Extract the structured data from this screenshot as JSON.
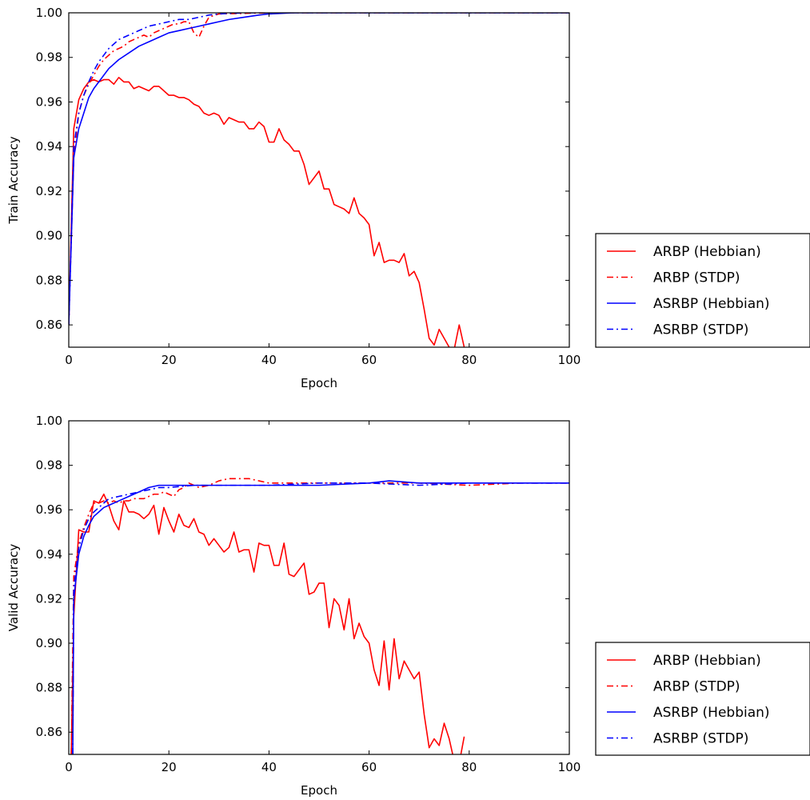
{
  "chart_data": [
    {
      "type": "line",
      "title": "",
      "xlabel": "Epoch",
      "ylabel": "Train Accuracy",
      "xlim": [
        0,
        100
      ],
      "ylim": [
        0.85,
        1.0
      ],
      "xticks": [
        "0",
        "20",
        "40",
        "60",
        "80",
        "100"
      ],
      "yticks": [
        "0.86",
        "0.88",
        "0.90",
        "0.92",
        "0.94",
        "0.96",
        "0.98",
        "1.00"
      ],
      "grid": false,
      "legend": {
        "placement": "outside-right",
        "entries": [
          "ARBP (Hebbian)",
          "ARBP (STDP)",
          "ASRBP (Hebbian)",
          "ASRBP (STDP)"
        ]
      },
      "series": [
        {
          "name": "ARBP (Hebbian)",
          "color": "#ff0000",
          "style": "solid",
          "x": [
            0,
            1,
            2,
            3,
            4,
            5,
            6,
            7,
            8,
            9,
            10,
            11,
            12,
            13,
            14,
            15,
            16,
            17,
            18,
            19,
            20,
            21,
            22,
            23,
            24,
            25,
            26,
            27,
            28,
            29,
            30,
            31,
            32,
            33,
            34,
            35,
            36,
            37,
            38,
            39,
            40,
            41,
            42,
            43,
            44,
            45,
            46,
            47,
            48,
            49,
            50,
            51,
            52,
            53,
            54,
            55,
            56,
            57,
            58,
            59,
            60,
            61,
            62,
            63,
            64,
            65,
            66,
            67,
            68,
            69,
            70,
            71,
            72,
            73,
            74,
            75,
            76,
            77,
            78,
            79
          ],
          "y": [
            0.86,
            0.948,
            0.961,
            0.966,
            0.969,
            0.97,
            0.969,
            0.97,
            0.97,
            0.968,
            0.971,
            0.969,
            0.969,
            0.966,
            0.967,
            0.966,
            0.965,
            0.967,
            0.967,
            0.965,
            0.963,
            0.963,
            0.962,
            0.962,
            0.961,
            0.959,
            0.958,
            0.955,
            0.954,
            0.955,
            0.954,
            0.95,
            0.953,
            0.952,
            0.951,
            0.951,
            0.948,
            0.948,
            0.951,
            0.949,
            0.942,
            0.942,
            0.948,
            0.943,
            0.941,
            0.938,
            0.938,
            0.932,
            0.923,
            0.926,
            0.929,
            0.921,
            0.921,
            0.914,
            0.913,
            0.912,
            0.91,
            0.917,
            0.91,
            0.908,
            0.905,
            0.891,
            0.897,
            0.888,
            0.889,
            0.889,
            0.888,
            0.892,
            0.882,
            0.884,
            0.879,
            0.867,
            0.854,
            0.851,
            0.858,
            0.854,
            0.85,
            0.849,
            0.86,
            0.85
          ]
        },
        {
          "name": "ARBP (STDP)",
          "color": "#ff0000",
          "style": "dashdot",
          "x": [
            0,
            1,
            2,
            3,
            4,
            5,
            6,
            7,
            8,
            9,
            10,
            11,
            12,
            13,
            14,
            15,
            16,
            17,
            18,
            19,
            20,
            21,
            22,
            23,
            24,
            25,
            26,
            27,
            28,
            30,
            40,
            60,
            80,
            100
          ],
          "y": [
            0.86,
            0.935,
            0.955,
            0.963,
            0.968,
            0.972,
            0.976,
            0.979,
            0.981,
            0.983,
            0.984,
            0.985,
            0.987,
            0.988,
            0.989,
            0.99,
            0.989,
            0.991,
            0.992,
            0.993,
            0.994,
            0.995,
            0.995,
            0.996,
            0.996,
            0.991,
            0.989,
            0.994,
            0.998,
            0.9995,
            1.0,
            1.0,
            1.0,
            1.0
          ]
        },
        {
          "name": "ASRBP (Hebbian)",
          "color": "#0000ff",
          "style": "solid",
          "x": [
            0,
            1,
            2,
            3,
            4,
            5,
            6,
            7,
            8,
            10,
            12,
            14,
            16,
            18,
            20,
            22,
            24,
            26,
            28,
            30,
            32,
            35,
            38,
            40,
            45,
            50,
            60,
            80,
            100
          ],
          "y": [
            0.86,
            0.935,
            0.948,
            0.955,
            0.962,
            0.966,
            0.969,
            0.972,
            0.975,
            0.979,
            0.982,
            0.985,
            0.987,
            0.989,
            0.991,
            0.992,
            0.993,
            0.994,
            0.995,
            0.996,
            0.997,
            0.998,
            0.999,
            0.9995,
            1.0,
            1.0,
            1.0,
            1.0,
            1.0
          ]
        },
        {
          "name": "ASRBP (STDP)",
          "color": "#0000ff",
          "style": "dashdot",
          "x": [
            0,
            1,
            2,
            3,
            4,
            5,
            6,
            7,
            8,
            10,
            12,
            14,
            16,
            18,
            20,
            22,
            24,
            26,
            28,
            30,
            35,
            40,
            60,
            80,
            100
          ],
          "y": [
            0.86,
            0.94,
            0.955,
            0.963,
            0.969,
            0.974,
            0.978,
            0.981,
            0.984,
            0.988,
            0.99,
            0.992,
            0.994,
            0.995,
            0.996,
            0.997,
            0.997,
            0.998,
            0.999,
            0.9995,
            1.0,
            1.0,
            1.0,
            1.0,
            1.0
          ]
        }
      ]
    },
    {
      "type": "line",
      "title": "",
      "xlabel": "Epoch",
      "ylabel": "Valid Accuracy",
      "xlim": [
        0,
        100
      ],
      "ylim": [
        0.85,
        1.0
      ],
      "xticks": [
        "0",
        "20",
        "40",
        "60",
        "80",
        "100"
      ],
      "yticks": [
        "0.86",
        "0.88",
        "0.90",
        "0.92",
        "0.94",
        "0.96",
        "0.98",
        "1.00"
      ],
      "grid": false,
      "legend": {
        "placement": "outside-right",
        "entries": [
          "ARBP (Hebbian)",
          "ARBP (STDP)",
          "ASRBP (Hebbian)",
          "ASRBP (STDP)"
        ]
      },
      "series": [
        {
          "name": "ARBP (Hebbian)",
          "color": "#ff0000",
          "style": "solid",
          "x": [
            0.5,
            1,
            2,
            3,
            4,
            5,
            6,
            7,
            8,
            9,
            10,
            11,
            12,
            13,
            14,
            15,
            16,
            17,
            18,
            19,
            20,
            21,
            22,
            23,
            24,
            25,
            26,
            27,
            28,
            29,
            30,
            31,
            32,
            33,
            34,
            35,
            36,
            37,
            38,
            39,
            40,
            41,
            42,
            43,
            44,
            45,
            46,
            47,
            48,
            49,
            50,
            51,
            52,
            53,
            54,
            55,
            56,
            57,
            58,
            59,
            60,
            61,
            62,
            63,
            64,
            65,
            66,
            67,
            68,
            69,
            70,
            71,
            72,
            73,
            74,
            75,
            76,
            77,
            78,
            79
          ],
          "y": [
            0.85,
            0.912,
            0.951,
            0.95,
            0.95,
            0.964,
            0.963,
            0.967,
            0.962,
            0.955,
            0.951,
            0.964,
            0.959,
            0.959,
            0.958,
            0.956,
            0.958,
            0.962,
            0.949,
            0.961,
            0.955,
            0.95,
            0.958,
            0.953,
            0.952,
            0.956,
            0.95,
            0.949,
            0.944,
            0.947,
            0.944,
            0.941,
            0.943,
            0.95,
            0.941,
            0.942,
            0.942,
            0.932,
            0.945,
            0.944,
            0.944,
            0.935,
            0.935,
            0.945,
            0.931,
            0.93,
            0.933,
            0.936,
            0.922,
            0.923,
            0.927,
            0.927,
            0.907,
            0.92,
            0.917,
            0.906,
            0.92,
            0.902,
            0.909,
            0.903,
            0.9,
            0.888,
            0.881,
            0.901,
            0.879,
            0.902,
            0.884,
            0.892,
            0.888,
            0.884,
            0.887,
            0.868,
            0.853,
            0.857,
            0.854,
            0.864,
            0.857,
            0.847,
            0.846,
            0.858
          ]
        },
        {
          "name": "ARBP (STDP)",
          "color": "#ff0000",
          "style": "dashdot",
          "x": [
            0.5,
            1,
            2,
            3,
            4,
            5,
            6,
            7,
            8,
            9,
            10,
            11,
            12,
            13,
            14,
            15,
            16,
            17,
            18,
            19,
            20,
            21,
            22,
            23,
            24,
            25,
            26,
            28,
            30,
            32,
            34,
            36,
            38,
            40,
            45,
            50,
            60,
            70,
            80,
            90,
            100
          ],
          "y": [
            0.85,
            0.93,
            0.945,
            0.952,
            0.958,
            0.963,
            0.963,
            0.964,
            0.963,
            0.964,
            0.963,
            0.964,
            0.964,
            0.965,
            0.965,
            0.965,
            0.966,
            0.967,
            0.967,
            0.968,
            0.967,
            0.966,
            0.969,
            0.97,
            0.972,
            0.971,
            0.97,
            0.971,
            0.973,
            0.974,
            0.974,
            0.974,
            0.973,
            0.972,
            0.972,
            0.972,
            0.972,
            0.972,
            0.971,
            0.972,
            0.972
          ]
        },
        {
          "name": "ASRBP (Hebbian)",
          "color": "#0000ff",
          "style": "solid",
          "x": [
            0.8,
            1,
            2,
            3,
            4,
            5,
            6,
            7,
            8,
            10,
            12,
            14,
            16,
            18,
            20,
            25,
            30,
            40,
            50,
            60,
            64,
            70,
            80,
            90,
            100
          ],
          "y": [
            0.85,
            0.92,
            0.94,
            0.948,
            0.953,
            0.957,
            0.959,
            0.961,
            0.962,
            0.964,
            0.966,
            0.968,
            0.97,
            0.971,
            0.971,
            0.971,
            0.971,
            0.971,
            0.971,
            0.972,
            0.973,
            0.972,
            0.972,
            0.972,
            0.972
          ]
        },
        {
          "name": "ASRBP (STDP)",
          "color": "#0000ff",
          "style": "dashdot",
          "x": [
            0.8,
            1,
            2,
            3,
            4,
            5,
            6,
            7,
            8,
            10,
            12,
            14,
            16,
            18,
            20,
            25,
            30,
            40,
            50,
            60,
            70,
            80,
            90,
            100
          ],
          "y": [
            0.85,
            0.925,
            0.943,
            0.951,
            0.956,
            0.959,
            0.961,
            0.963,
            0.965,
            0.966,
            0.967,
            0.968,
            0.969,
            0.97,
            0.97,
            0.971,
            0.971,
            0.971,
            0.972,
            0.972,
            0.971,
            0.972,
            0.972,
            0.972
          ]
        }
      ]
    }
  ]
}
